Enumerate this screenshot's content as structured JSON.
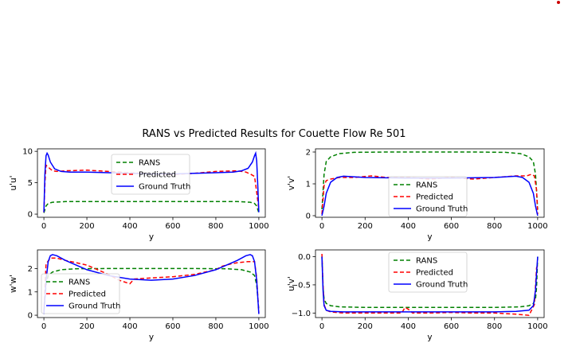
{
  "figure": {
    "suptitle": "RANS vs Predicted Results for Couette Flow Re 501",
    "marker_color": "#cc0000"
  },
  "colors": {
    "RANS": "#008000",
    "Predicted": "#ff0000",
    "Ground Truth": "#0000ff"
  },
  "chart_data": [
    {
      "type": "line",
      "title": "",
      "xlabel": "y",
      "ylabel": "u'u'",
      "xlim": [
        -30,
        1030
      ],
      "ylim": [
        -0.5,
        10.4
      ],
      "xticks": [
        0,
        200,
        400,
        600,
        800,
        1000
      ],
      "yticks": [
        0,
        5,
        10
      ],
      "legend": {
        "entries": [
          "RANS",
          "Predicted",
          "Ground Truth"
        ],
        "placement": "upper center"
      },
      "series": [
        {
          "name": "RANS",
          "x": [
            0,
            10,
            20,
            40,
            100,
            200,
            300,
            400,
            500,
            600,
            700,
            800,
            900,
            960,
            980,
            990,
            1000
          ],
          "y": [
            0.2,
            1.3,
            1.7,
            1.9,
            2.0,
            2.0,
            2.0,
            2.0,
            2.0,
            2.0,
            2.0,
            2.0,
            2.0,
            1.9,
            1.7,
            1.3,
            0.2
          ]
        },
        {
          "name": "Predicted",
          "x": [
            0,
            5,
            10,
            20,
            40,
            60,
            100,
            200,
            300,
            400,
            500,
            600,
            700,
            800,
            900,
            940,
            960,
            980,
            990,
            1000
          ],
          "y": [
            0.3,
            5.0,
            7.8,
            7.5,
            6.9,
            6.8,
            6.9,
            7.0,
            6.8,
            6.6,
            6.4,
            6.3,
            6.5,
            6.8,
            6.9,
            6.7,
            6.4,
            6.0,
            3.5,
            0.8
          ]
        },
        {
          "name": "Ground Truth",
          "x": [
            0,
            5,
            10,
            15,
            20,
            30,
            50,
            80,
            120,
            200,
            300,
            400,
            500,
            600,
            700,
            800,
            880,
            920,
            950,
            970,
            980,
            985,
            990,
            995,
            1000
          ],
          "y": [
            0.3,
            6.5,
            9.3,
            9.7,
            9.4,
            8.3,
            7.2,
            6.8,
            6.7,
            6.7,
            6.6,
            6.5,
            6.4,
            6.4,
            6.5,
            6.6,
            6.7,
            6.9,
            7.3,
            8.3,
            9.3,
            9.7,
            8.5,
            4.5,
            0.3
          ]
        }
      ]
    },
    {
      "type": "line",
      "title": "",
      "xlabel": "y",
      "ylabel": "v'v'",
      "xlim": [
        -30,
        1030
      ],
      "ylim": [
        -0.05,
        2.1
      ],
      "xticks": [
        0,
        200,
        400,
        600,
        800,
        1000
      ],
      "yticks": [
        0,
        1,
        2
      ],
      "legend": {
        "entries": [
          "RANS",
          "Predicted",
          "Ground Truth"
        ],
        "placement": "center"
      },
      "series": [
        {
          "name": "RANS",
          "x": [
            0,
            10,
            20,
            40,
            80,
            150,
            300,
            500,
            700,
            850,
            920,
            960,
            980,
            990,
            1000
          ],
          "y": [
            0.2,
            1.3,
            1.7,
            1.85,
            1.95,
            1.99,
            2.0,
            2.0,
            2.0,
            1.99,
            1.95,
            1.85,
            1.7,
            1.3,
            0.2
          ]
        },
        {
          "name": "Predicted",
          "x": [
            0,
            10,
            20,
            40,
            80,
            150,
            230,
            300,
            400,
            500,
            600,
            700,
            800,
            900,
            950,
            970,
            985,
            995,
            1000
          ],
          "y": [
            0.05,
            0.95,
            1.1,
            1.15,
            1.2,
            1.2,
            1.25,
            1.2,
            1.2,
            1.15,
            1.2,
            1.15,
            1.2,
            1.25,
            1.25,
            1.3,
            1.25,
            0.8,
            0.05
          ]
        },
        {
          "name": "Ground Truth",
          "x": [
            0,
            10,
            20,
            40,
            70,
            100,
            200,
            400,
            600,
            800,
            900,
            930,
            960,
            980,
            990,
            1000
          ],
          "y": [
            0.0,
            0.3,
            0.7,
            1.05,
            1.2,
            1.24,
            1.2,
            1.18,
            1.18,
            1.2,
            1.24,
            1.2,
            1.05,
            0.7,
            0.3,
            0.0
          ]
        }
      ]
    },
    {
      "type": "line",
      "title": "",
      "xlabel": "y",
      "ylabel": "w'w'",
      "xlim": [
        -30,
        1030
      ],
      "ylim": [
        -0.1,
        2.8
      ],
      "xticks": [
        0,
        200,
        400,
        600,
        800,
        1000
      ],
      "yticks": [
        0,
        1,
        2
      ],
      "legend": {
        "entries": [
          "RANS",
          "Predicted",
          "Ground Truth"
        ],
        "placement": "lower left"
      },
      "series": [
        {
          "name": "RANS",
          "x": [
            0,
            10,
            20,
            40,
            80,
            150,
            300,
            500,
            700,
            850,
            920,
            960,
            980,
            990,
            1000
          ],
          "y": [
            0.2,
            1.3,
            1.7,
            1.85,
            1.95,
            1.99,
            2.0,
            2.0,
            2.0,
            1.99,
            1.95,
            1.85,
            1.7,
            1.3,
            0.2
          ]
        },
        {
          "name": "Predicted",
          "x": [
            0,
            10,
            30,
            60,
            100,
            150,
            200,
            250,
            300,
            350,
            400,
            420,
            500,
            600,
            700,
            800,
            830,
            870,
            900,
            950,
            980,
            990,
            1000
          ],
          "y": [
            0.1,
            2.2,
            2.45,
            2.45,
            2.35,
            2.25,
            2.15,
            1.95,
            1.75,
            1.5,
            1.35,
            1.55,
            1.6,
            1.65,
            1.75,
            1.95,
            2.1,
            2.2,
            2.25,
            2.3,
            2.3,
            1.6,
            0.1
          ]
        },
        {
          "name": "Ground Truth",
          "x": [
            0,
            10,
            20,
            30,
            40,
            60,
            100,
            200,
            300,
            400,
            500,
            600,
            700,
            800,
            900,
            940,
            960,
            970,
            980,
            990,
            1000
          ],
          "y": [
            0.05,
            1.5,
            2.3,
            2.55,
            2.6,
            2.55,
            2.35,
            1.95,
            1.7,
            1.55,
            1.5,
            1.55,
            1.7,
            1.95,
            2.35,
            2.55,
            2.6,
            2.55,
            2.3,
            1.5,
            0.05
          ]
        }
      ]
    },
    {
      "type": "line",
      "title": "",
      "xlabel": "y",
      "ylabel": "u'v'",
      "xlim": [
        -30,
        1030
      ],
      "ylim": [
        -1.08,
        0.12
      ],
      "xticks": [
        0,
        200,
        400,
        600,
        800,
        1000
      ],
      "yticks": [
        0.0,
        -0.5,
        -1.0
      ],
      "ytick_labels": [
        "0.0",
        "−0.5",
        "−1.0"
      ],
      "legend": {
        "entries": [
          "RANS",
          "Predicted",
          "Ground Truth"
        ],
        "placement": "upper center"
      },
      "series": [
        {
          "name": "RANS",
          "x": [
            0,
            5,
            10,
            20,
            40,
            80,
            200,
            400,
            600,
            800,
            920,
            960,
            980,
            990,
            995,
            1000
          ],
          "y": [
            0.0,
            -0.55,
            -0.75,
            -0.83,
            -0.87,
            -0.89,
            -0.9,
            -0.9,
            -0.9,
            -0.9,
            -0.89,
            -0.87,
            -0.83,
            -0.75,
            -0.55,
            0.0
          ]
        },
        {
          "name": "Predicted",
          "x": [
            0,
            5,
            10,
            20,
            40,
            100,
            200,
            300,
            370,
            385,
            400,
            420,
            500,
            600,
            700,
            800,
            900,
            960,
            985,
            995,
            1000
          ],
          "y": [
            0.05,
            -0.5,
            -0.85,
            -0.95,
            -0.98,
            -1.0,
            -1.0,
            -1.0,
            -1.0,
            -0.9,
            -0.93,
            -1.0,
            -1.0,
            -0.99,
            -1.0,
            -1.0,
            -1.02,
            -1.04,
            -0.85,
            -0.2,
            -0.15
          ]
        },
        {
          "name": "Ground Truth",
          "x": [
            0,
            5,
            10,
            20,
            40,
            100,
            200,
            400,
            600,
            800,
            900,
            960,
            980,
            990,
            995,
            1000
          ],
          "y": [
            0.0,
            -0.6,
            -0.87,
            -0.95,
            -0.97,
            -0.98,
            -0.98,
            -0.98,
            -0.98,
            -0.98,
            -0.97,
            -0.95,
            -0.87,
            -0.6,
            -0.3,
            0.0
          ]
        }
      ]
    }
  ]
}
